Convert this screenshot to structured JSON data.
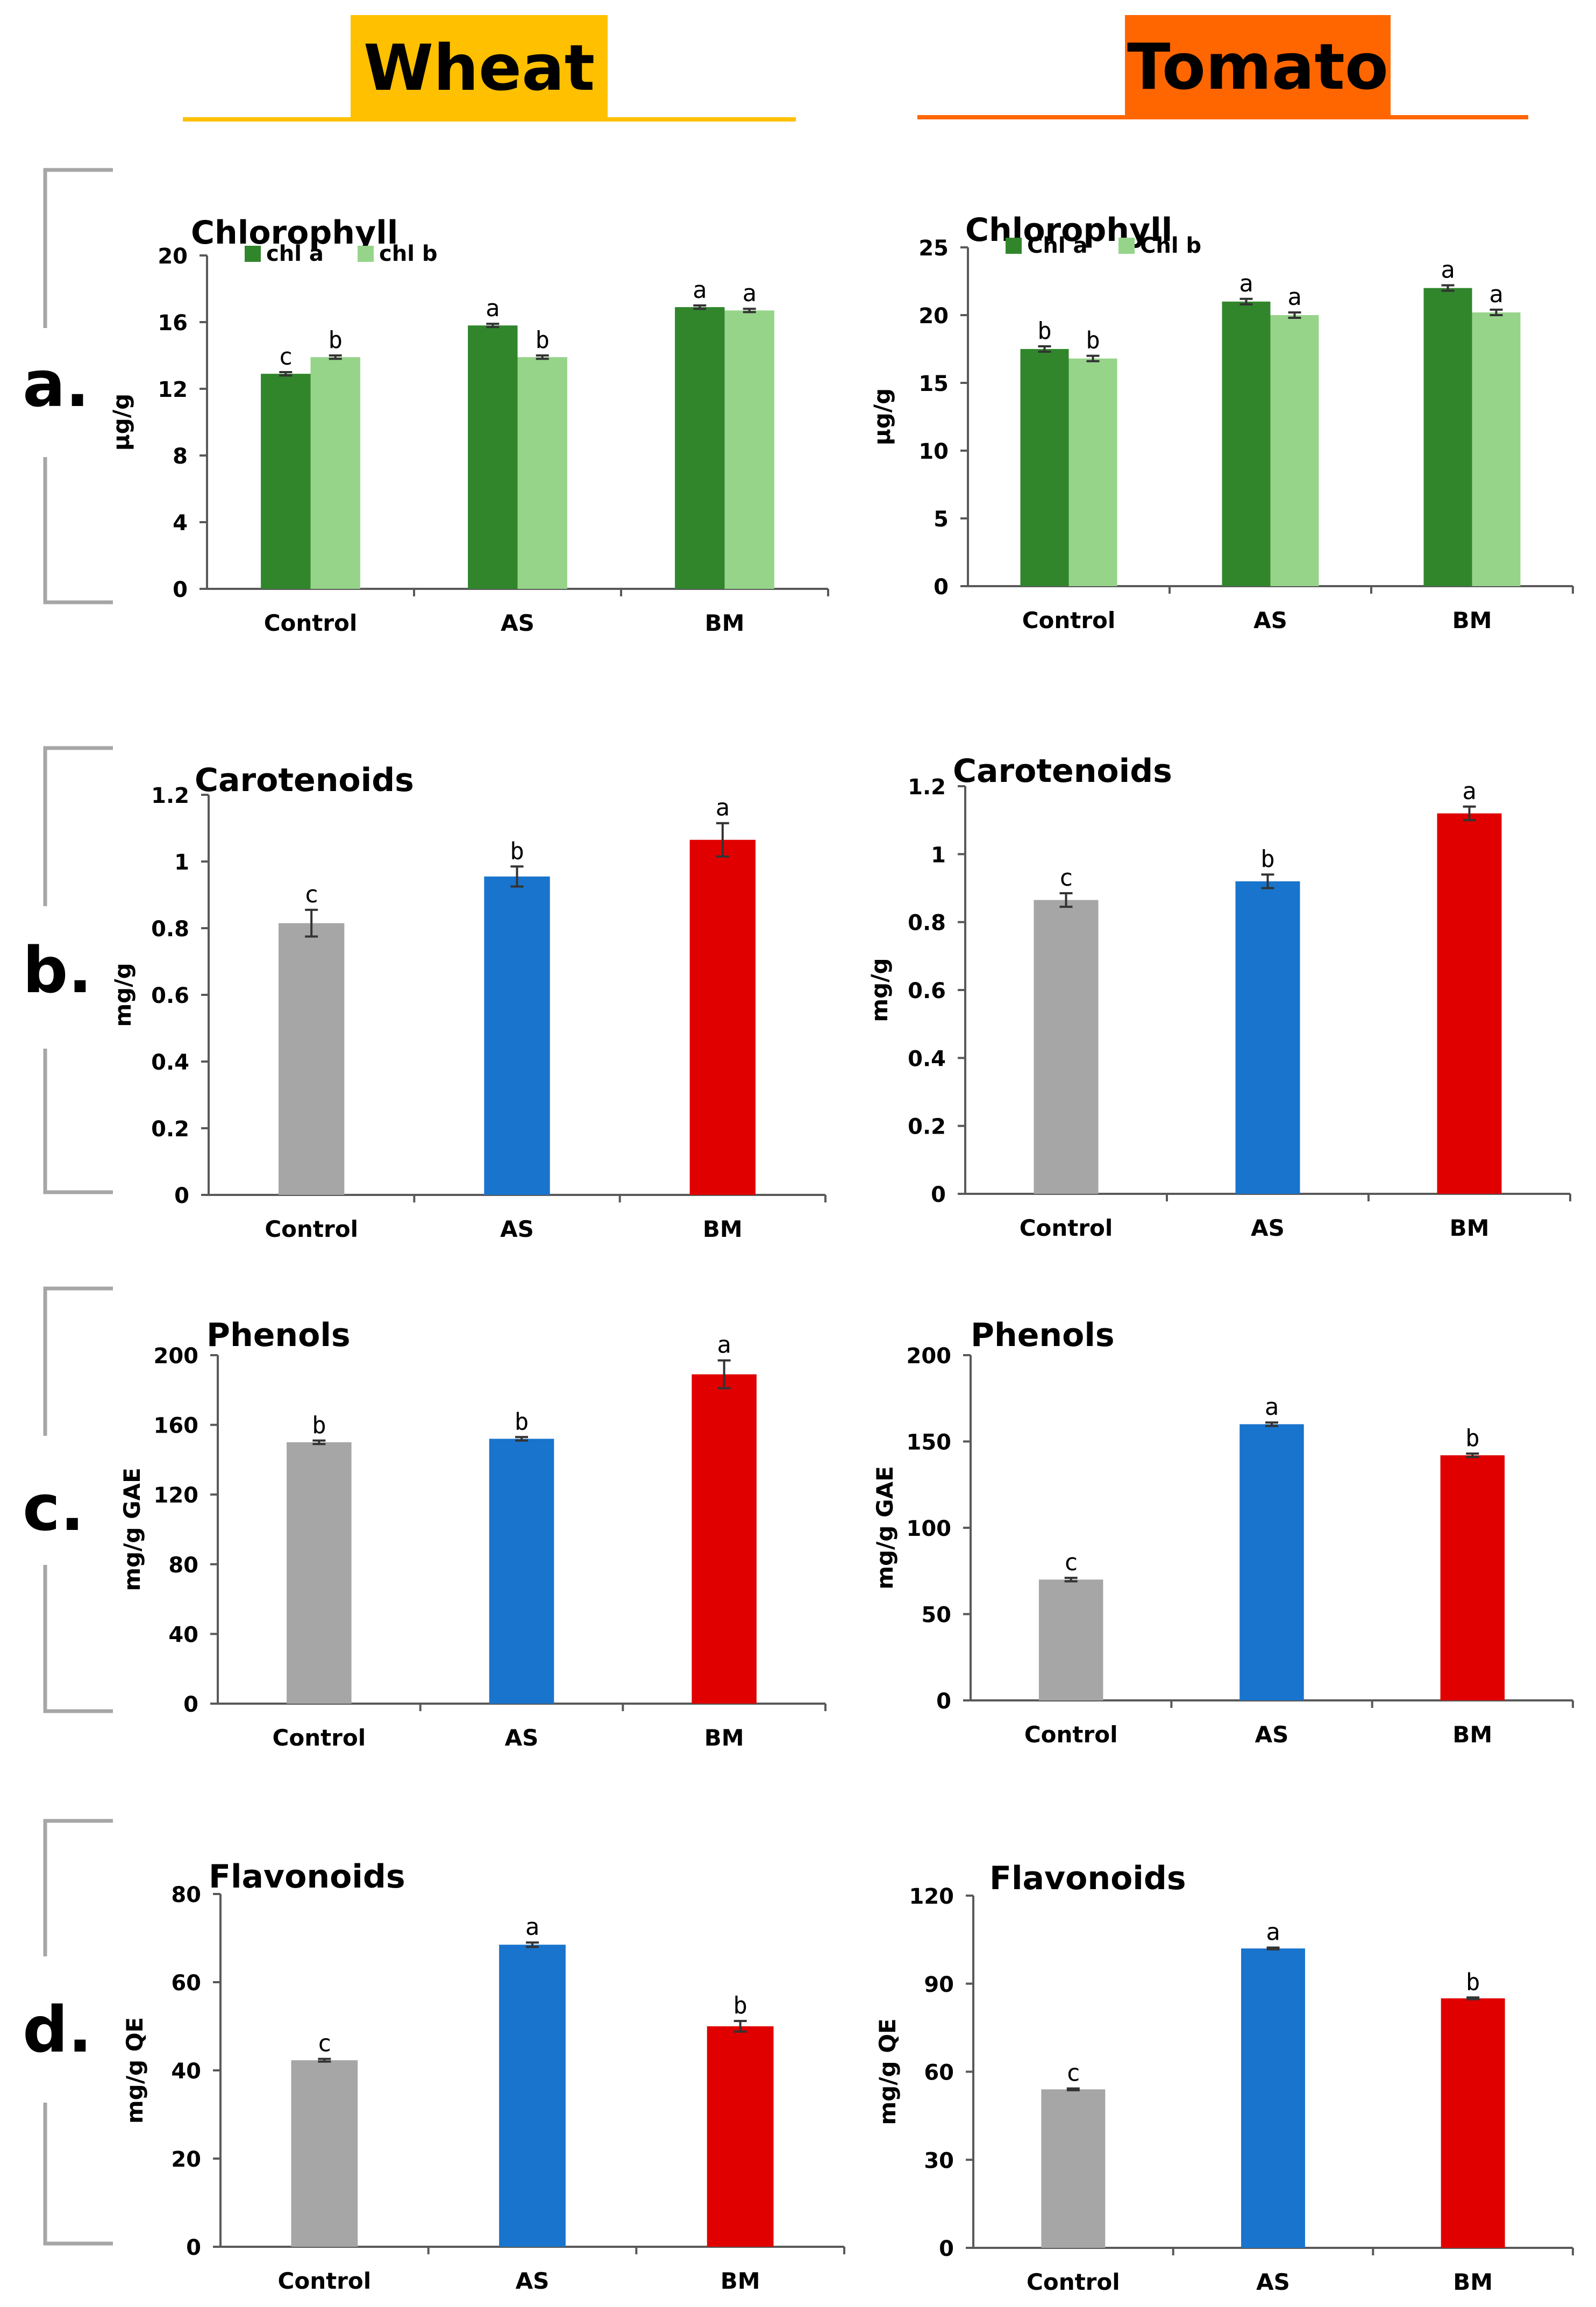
{
  "headers": {
    "left": {
      "label": "Wheat",
      "color": "#FFC000"
    },
    "right": {
      "label": "Tomato",
      "color": "#FF6600"
    }
  },
  "panels": [
    {
      "id": "a",
      "label": "a."
    },
    {
      "id": "b",
      "label": "b."
    },
    {
      "id": "c",
      "label": "c."
    },
    {
      "id": "d",
      "label": "d."
    }
  ],
  "colors": {
    "chl_a": "#31862C",
    "chl_b": "#96D48A",
    "control": "#A6A6A6",
    "as": "#1874CD",
    "bm": "#E00000",
    "axis": "#595959",
    "bracket": "#A6A6A6"
  },
  "chart_data": [
    {
      "id": "wheat-chlorophyll",
      "panel": "a",
      "column": "Wheat",
      "type": "bar",
      "title": "Chlorophyll",
      "ylabel": "µg/g",
      "xlabel": "",
      "categories": [
        "Control",
        "AS",
        "BM"
      ],
      "ylim": [
        0,
        20
      ],
      "yticks": [
        0,
        4,
        8,
        12,
        16,
        20
      ],
      "legend": "top-left",
      "series": [
        {
          "name": "chl a",
          "values": [
            12.9,
            15.8,
            16.9
          ],
          "errors": [
            0.1,
            0.1,
            0.1
          ],
          "letters": [
            "c",
            "a",
            "a"
          ]
        },
        {
          "name": "chl b",
          "values": [
            13.9,
            13.9,
            16.7
          ],
          "errors": [
            0.1,
            0.1,
            0.1
          ],
          "letters": [
            "b",
            "b",
            "a"
          ]
        }
      ]
    },
    {
      "id": "tomato-chlorophyll",
      "panel": "a",
      "column": "Tomato",
      "type": "bar",
      "title": "Chlorophyll",
      "ylabel": "µg/g",
      "xlabel": "",
      "categories": [
        "Control",
        "AS",
        "BM"
      ],
      "ylim": [
        0,
        25
      ],
      "yticks": [
        0,
        5,
        10,
        15,
        20,
        25
      ],
      "legend": "top-left",
      "series": [
        {
          "name": "Chl a",
          "values": [
            17.5,
            21.0,
            22.0
          ],
          "errors": [
            0.2,
            0.2,
            0.2
          ],
          "letters": [
            "b",
            "a",
            "a"
          ]
        },
        {
          "name": "Chl b",
          "values": [
            16.8,
            20.0,
            20.2
          ],
          "errors": [
            0.2,
            0.2,
            0.2
          ],
          "letters": [
            "b",
            "a",
            "a"
          ]
        }
      ]
    },
    {
      "id": "wheat-carotenoids",
      "panel": "b",
      "column": "Wheat",
      "type": "bar",
      "title": "Carotenoids",
      "ylabel": "mg/g",
      "xlabel": "",
      "categories": [
        "Control",
        "AS",
        "BM"
      ],
      "ylim": [
        0,
        1.2
      ],
      "yticks": [
        0,
        0.2,
        0.4,
        0.6,
        0.8,
        1,
        1.2
      ],
      "series": [
        {
          "name": "Carotenoids",
          "values": [
            0.815,
            0.955,
            1.065
          ],
          "errors": [
            0.04,
            0.03,
            0.05
          ],
          "letters": [
            "c",
            "b",
            "a"
          ]
        }
      ]
    },
    {
      "id": "tomato-carotenoids",
      "panel": "b",
      "column": "Tomato",
      "type": "bar",
      "title": "Carotenoids",
      "ylabel": "mg/g",
      "xlabel": "",
      "categories": [
        "Control",
        "AS",
        "BM"
      ],
      "ylim": [
        0,
        1.2
      ],
      "yticks": [
        0,
        0.2,
        0.4,
        0.6,
        0.8,
        1,
        1.2
      ],
      "series": [
        {
          "name": "Carotenoids",
          "values": [
            0.865,
            0.92,
            1.12
          ],
          "errors": [
            0.02,
            0.02,
            0.02
          ],
          "letters": [
            "c",
            "b",
            "a"
          ]
        }
      ]
    },
    {
      "id": "wheat-phenols",
      "panel": "c",
      "column": "Wheat",
      "type": "bar",
      "title": "Phenols",
      "ylabel": "mg/g GAE",
      "xlabel": "",
      "categories": [
        "Control",
        "AS",
        "BM"
      ],
      "ylim": [
        0,
        200
      ],
      "yticks": [
        0,
        40,
        80,
        120,
        160,
        200
      ],
      "series": [
        {
          "name": "Phenols",
          "values": [
            150,
            152,
            189
          ],
          "errors": [
            1,
            1,
            8
          ],
          "letters": [
            "b",
            "b",
            "a"
          ]
        }
      ]
    },
    {
      "id": "tomato-phenols",
      "panel": "c",
      "column": "Tomato",
      "type": "bar",
      "title": "Phenols",
      "ylabel": "mg/g GAE",
      "xlabel": "",
      "categories": [
        "Control",
        "AS",
        "BM"
      ],
      "ylim": [
        0,
        200
      ],
      "yticks": [
        0,
        50,
        100,
        150,
        200
      ],
      "series": [
        {
          "name": "Phenols",
          "values": [
            70,
            160,
            142
          ],
          "errors": [
            1,
            1,
            1
          ],
          "letters": [
            "c",
            "a",
            "b"
          ]
        }
      ]
    },
    {
      "id": "wheat-flavonoids",
      "panel": "d",
      "column": "Wheat",
      "type": "bar",
      "title": "Flavonoids",
      "ylabel": "mg/g QE",
      "xlabel": "",
      "categories": [
        "Control",
        "AS",
        "BM"
      ],
      "ylim": [
        0,
        80
      ],
      "yticks": [
        0,
        20,
        40,
        60,
        80
      ],
      "series": [
        {
          "name": "Flavonoids",
          "values": [
            42.3,
            68.5,
            50
          ],
          "errors": [
            0.3,
            0.5,
            1.2
          ],
          "letters": [
            "c",
            "a",
            "b"
          ]
        }
      ]
    },
    {
      "id": "tomato-flavonoids",
      "panel": "d",
      "column": "Tomato",
      "type": "bar",
      "title": "Flavonoids",
      "ylabel": "mg/g QE",
      "xlabel": "",
      "categories": [
        "Control",
        "AS",
        "BM"
      ],
      "ylim": [
        0,
        120
      ],
      "yticks": [
        0,
        30,
        60,
        90,
        120
      ],
      "series": [
        {
          "name": "Flavonoids",
          "values": [
            54,
            102,
            85
          ],
          "errors": [
            0.3,
            0.3,
            0.3
          ],
          "letters": [
            "c",
            "a",
            "b"
          ]
        }
      ]
    }
  ]
}
